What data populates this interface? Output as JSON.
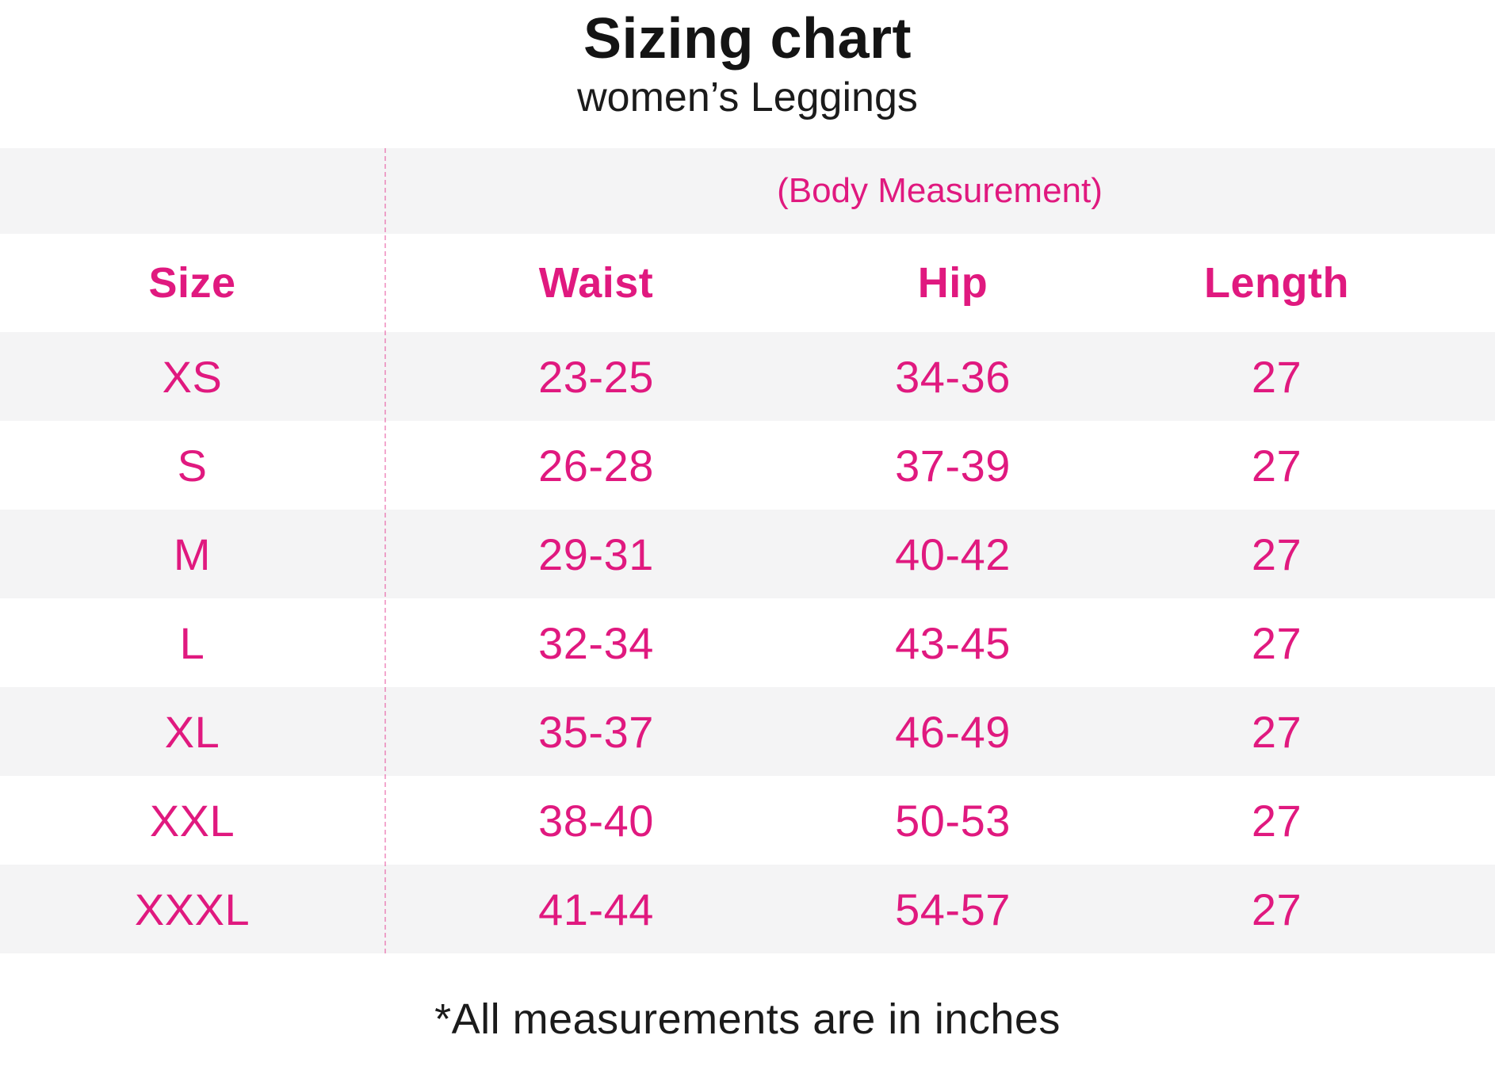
{
  "header": {
    "title": "Sizing chart",
    "subtitle": "women’s Leggings"
  },
  "footnote": "*All measurements are in inches",
  "colors": {
    "accent_pink": "#e0197f",
    "row_stripe_gray": "#f4f4f5",
    "divider_dashed_pink": "rgba(224,25,127,.38)",
    "text_black": "#1b1b1b"
  },
  "chart_data": {
    "type": "table",
    "title": "Sizing chart",
    "subtitle": "women’s Leggings",
    "group_header": "(Body Measurement)",
    "columns": [
      "Size",
      "Waist",
      "Hip",
      "Length"
    ],
    "rows": [
      {
        "size": "XS",
        "waist": "23-25",
        "hip": "34-36",
        "length": "27"
      },
      {
        "size": "S",
        "waist": "26-28",
        "hip": "37-39",
        "length": "27"
      },
      {
        "size": "M",
        "waist": "29-31",
        "hip": "40-42",
        "length": "27"
      },
      {
        "size": "L",
        "waist": "32-34",
        "hip": "43-45",
        "length": "27"
      },
      {
        "size": "XL",
        "waist": "35-37",
        "hip": "46-49",
        "length": "27"
      },
      {
        "size": "XXL",
        "waist": "38-40",
        "hip": "50-53",
        "length": "27"
      },
      {
        "size": "XXXL",
        "waist": "41-44",
        "hip": "54-57",
        "length": "27"
      }
    ],
    "units": "inches",
    "footnote": "*All measurements are in inches",
    "layout_hints": {
      "striped_rows": "group header and odd data rows (XS, M, XL, XXXL) are gray",
      "dashed_divider_after_column": "Size",
      "group_header_spans": [
        "Waist",
        "Hip",
        "Length"
      ]
    }
  }
}
